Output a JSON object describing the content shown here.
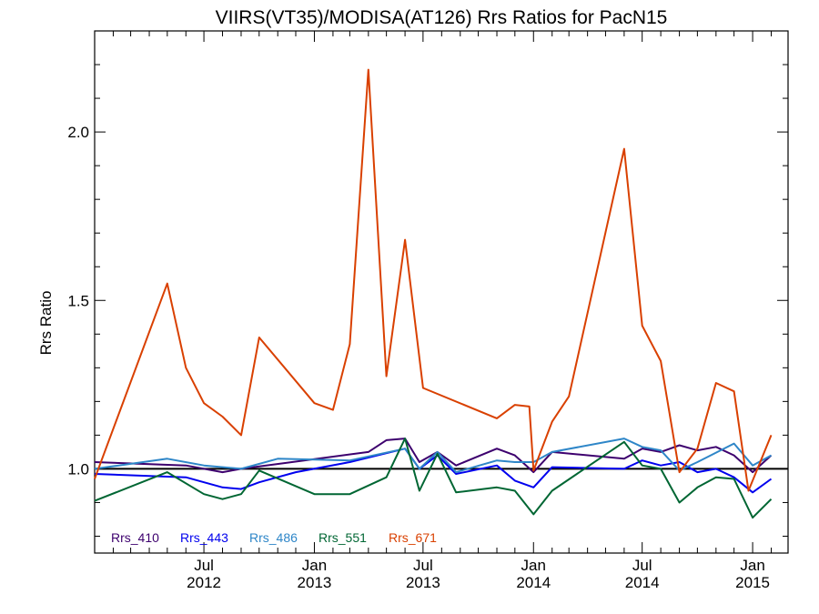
{
  "chart_data": {
    "type": "line",
    "title": "VIIRS(VT35)/MODISA(AT126)  Rrs Ratios for PacN15",
    "xlabel": "",
    "ylabel": "Rrs Ratio",
    "xlim": [
      "2012-01-01",
      "2015-03-01"
    ],
    "ylim": [
      0.75,
      2.3
    ],
    "yticks": [
      {
        "value": 1.0,
        "label": "1.0"
      },
      {
        "value": 1.5,
        "label": "1.5"
      },
      {
        "value": 2.0,
        "label": "2.0"
      }
    ],
    "xticks": [
      {
        "date": "2012-07-01",
        "line1": "Jul",
        "line2": "2012"
      },
      {
        "date": "2013-01-01",
        "line1": "Jan",
        "line2": "2013"
      },
      {
        "date": "2013-07-01",
        "line1": "Jul",
        "line2": "2013"
      },
      {
        "date": "2014-01-01",
        "line1": "Jan",
        "line2": "2014"
      },
      {
        "date": "2014-07-01",
        "line1": "Jul",
        "line2": "2014"
      },
      {
        "date": "2015-01-01",
        "line1": "Jan",
        "line2": "2015"
      }
    ],
    "reference_line": 1.0,
    "legend_position": "bottom-left",
    "grid": false,
    "series": [
      {
        "name": "Rrs_410",
        "color": "#3d006e",
        "points": [
          [
            "2012-01-01",
            1.02
          ],
          [
            "2012-06-01",
            1.01
          ],
          [
            "2012-08-01",
            0.99
          ],
          [
            "2012-09-01",
            1.0
          ],
          [
            "2013-04-01",
            1.05
          ],
          [
            "2013-05-01",
            1.085
          ],
          [
            "2013-06-01",
            1.09
          ],
          [
            "2013-06-25",
            1.02
          ],
          [
            "2013-07-25",
            1.05
          ],
          [
            "2013-08-25",
            1.01
          ],
          [
            "2013-11-01",
            1.06
          ],
          [
            "2013-12-01",
            1.04
          ],
          [
            "2014-01-01",
            0.99
          ],
          [
            "2014-02-01",
            1.05
          ],
          [
            "2014-06-01",
            1.03
          ],
          [
            "2014-07-01",
            1.06
          ],
          [
            "2014-08-01",
            1.05
          ],
          [
            "2014-09-01",
            1.07
          ],
          [
            "2014-10-01",
            1.055
          ],
          [
            "2014-11-01",
            1.065
          ],
          [
            "2014-12-01",
            1.04
          ],
          [
            "2015-01-01",
            0.99
          ],
          [
            "2015-02-01",
            1.04
          ]
        ]
      },
      {
        "name": "Rrs_443",
        "color": "#0000ee",
        "points": [
          [
            "2012-01-01",
            0.985
          ],
          [
            "2012-06-01",
            0.975
          ],
          [
            "2012-08-01",
            0.945
          ],
          [
            "2012-09-01",
            0.94
          ],
          [
            "2012-10-01",
            0.96
          ],
          [
            "2012-12-01",
            0.99
          ],
          [
            "2013-03-01",
            1.02
          ],
          [
            "2013-06-01",
            1.06
          ],
          [
            "2013-06-25",
            1.0
          ],
          [
            "2013-07-25",
            1.04
          ],
          [
            "2013-08-25",
            0.985
          ],
          [
            "2013-11-01",
            1.01
          ],
          [
            "2013-12-01",
            0.965
          ],
          [
            "2014-01-01",
            0.945
          ],
          [
            "2014-02-01",
            1.005
          ],
          [
            "2014-06-01",
            1.0
          ],
          [
            "2014-07-01",
            1.025
          ],
          [
            "2014-08-01",
            1.01
          ],
          [
            "2014-09-01",
            1.02
          ],
          [
            "2014-10-01",
            0.99
          ],
          [
            "2014-11-01",
            1.0
          ],
          [
            "2014-12-01",
            0.975
          ],
          [
            "2015-01-01",
            0.93
          ],
          [
            "2015-02-01",
            0.97
          ]
        ]
      },
      {
        "name": "Rrs_486",
        "color": "#2e86c8",
        "points": [
          [
            "2012-01-01",
            1.0
          ],
          [
            "2012-05-01",
            1.03
          ],
          [
            "2012-07-01",
            1.01
          ],
          [
            "2012-09-01",
            1.0
          ],
          [
            "2012-11-01",
            1.03
          ],
          [
            "2013-03-01",
            1.025
          ],
          [
            "2013-06-01",
            1.06
          ],
          [
            "2013-06-25",
            1.0
          ],
          [
            "2013-07-25",
            1.05
          ],
          [
            "2013-08-25",
            0.99
          ],
          [
            "2013-11-01",
            1.025
          ],
          [
            "2013-12-01",
            1.02
          ],
          [
            "2014-01-01",
            1.02
          ],
          [
            "2014-02-01",
            1.05
          ],
          [
            "2014-06-01",
            1.09
          ],
          [
            "2014-07-01",
            1.065
          ],
          [
            "2014-08-01",
            1.055
          ],
          [
            "2014-09-01",
            0.995
          ],
          [
            "2014-10-01",
            1.02
          ],
          [
            "2014-12-01",
            1.075
          ],
          [
            "2015-01-01",
            1.01
          ],
          [
            "2015-02-01",
            1.04
          ]
        ]
      },
      {
        "name": "Rrs_551",
        "color": "#006633",
        "points": [
          [
            "2012-01-01",
            0.905
          ],
          [
            "2012-05-01",
            0.99
          ],
          [
            "2012-07-01",
            0.925
          ],
          [
            "2012-08-01",
            0.91
          ],
          [
            "2012-09-01",
            0.925
          ],
          [
            "2012-10-01",
            0.995
          ],
          [
            "2013-01-01",
            0.925
          ],
          [
            "2013-03-01",
            0.925
          ],
          [
            "2013-05-01",
            0.975
          ],
          [
            "2013-06-01",
            1.09
          ],
          [
            "2013-06-25",
            0.935
          ],
          [
            "2013-07-25",
            1.045
          ],
          [
            "2013-08-25",
            0.93
          ],
          [
            "2013-11-01",
            0.945
          ],
          [
            "2013-12-01",
            0.935
          ],
          [
            "2014-01-01",
            0.865
          ],
          [
            "2014-02-01",
            0.935
          ],
          [
            "2014-06-01",
            1.08
          ],
          [
            "2014-07-01",
            1.01
          ],
          [
            "2014-08-01",
            1.0
          ],
          [
            "2014-09-01",
            0.9
          ],
          [
            "2014-10-01",
            0.945
          ],
          [
            "2014-11-01",
            0.975
          ],
          [
            "2014-12-01",
            0.97
          ],
          [
            "2015-01-01",
            0.855
          ],
          [
            "2015-02-01",
            0.91
          ]
        ]
      },
      {
        "name": "Rrs_671",
        "color": "#d94000",
        "points": [
          [
            "2012-01-01",
            0.97
          ],
          [
            "2012-05-01",
            1.55
          ],
          [
            "2012-06-01",
            1.3
          ],
          [
            "2012-07-01",
            1.195
          ],
          [
            "2012-08-01",
            1.155
          ],
          [
            "2012-09-01",
            1.1
          ],
          [
            "2012-10-01",
            1.39
          ],
          [
            "2013-01-01",
            1.195
          ],
          [
            "2013-02-01",
            1.175
          ],
          [
            "2013-03-01",
            1.37
          ],
          [
            "2013-04-01",
            2.185
          ],
          [
            "2013-05-01",
            1.275
          ],
          [
            "2013-06-01",
            1.68
          ],
          [
            "2013-07-01",
            1.24
          ],
          [
            "2013-11-01",
            1.15
          ],
          [
            "2013-12-01",
            1.19
          ],
          [
            "2013-12-25",
            1.185
          ],
          [
            "2014-01-01",
            0.995
          ],
          [
            "2014-02-01",
            1.14
          ],
          [
            "2014-03-01",
            1.215
          ],
          [
            "2014-06-01",
            1.95
          ],
          [
            "2014-07-01",
            1.425
          ],
          [
            "2014-08-01",
            1.32
          ],
          [
            "2014-09-01",
            0.99
          ],
          [
            "2014-10-01",
            1.06
          ],
          [
            "2014-11-01",
            1.255
          ],
          [
            "2014-12-01",
            1.23
          ],
          [
            "2014-12-25",
            0.935
          ],
          [
            "2015-02-01",
            1.1
          ]
        ]
      }
    ]
  }
}
